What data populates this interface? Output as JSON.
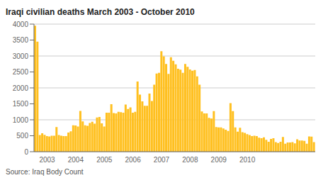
{
  "chart_data": {
    "type": "bar",
    "title": "Iraqi civilian deaths March 2003 - October 2010",
    "annotations": [
      "Source: Iraq Body Count"
    ],
    "categories": [
      null,
      null,
      null,
      null,
      null,
      "2003",
      null,
      null,
      null,
      null,
      null,
      null,
      null,
      null,
      null,
      null,
      null,
      "2004",
      null,
      null,
      null,
      null,
      null,
      null,
      null,
      null,
      null,
      null,
      null,
      "2005",
      null,
      null,
      null,
      null,
      null,
      null,
      null,
      null,
      null,
      null,
      null,
      "2006",
      null,
      null,
      null,
      null,
      null,
      null,
      null,
      null,
      null,
      null,
      null,
      "2007",
      null,
      null,
      null,
      null,
      null,
      null,
      null,
      null,
      null,
      null,
      null,
      "2008",
      null,
      null,
      null,
      null,
      null,
      null,
      null,
      null,
      null,
      null,
      null,
      "2009",
      null,
      null,
      null,
      null,
      null,
      null,
      null,
      null,
      null,
      null,
      null,
      "2010",
      null,
      null,
      null,
      null,
      null,
      null,
      null,
      null,
      null,
      null,
      null,
      null,
      null,
      null,
      null,
      null,
      null,
      null,
      null,
      null,
      null,
      null,
      null,
      null,
      null,
      null,
      null,
      null
    ],
    "values": [
      3950,
      3450,
      520,
      580,
      530,
      490,
      480,
      500,
      500,
      770,
      520,
      500,
      490,
      490,
      600,
      640,
      830,
      820,
      790,
      1280,
      950,
      830,
      810,
      900,
      940,
      880,
      1070,
      1090,
      890,
      790,
      1220,
      1220,
      1490,
      1210,
      1200,
      1250,
      1240,
      1220,
      1480,
      1340,
      1390,
      1220,
      1250,
      2200,
      1790,
      1580,
      1440,
      1440,
      1820,
      1590,
      2100,
      2450,
      2470,
      3150,
      2990,
      2750,
      2440,
      2960,
      2850,
      2740,
      2600,
      2570,
      2470,
      2750,
      2660,
      2580,
      2540,
      2560,
      2360,
      2100,
      1260,
      1200,
      1200,
      1060,
      1040,
      1270,
      770,
      760,
      760,
      730,
      690,
      650,
      1520,
      1270,
      760,
      630,
      750,
      610,
      590,
      550,
      520,
      490,
      500,
      490,
      440,
      420,
      450,
      370,
      310,
      400,
      420,
      300,
      270,
      310,
      460,
      250,
      290,
      290,
      300,
      260,
      390,
      350,
      350,
      340,
      250,
      480,
      470,
      300
    ],
    "color": "#FFC020",
    "ylim": [
      0,
      4000
    ],
    "yticks": [
      0,
      500,
      1000,
      1500,
      2000,
      2500,
      3000,
      3500,
      4000
    ],
    "grid": true
  }
}
